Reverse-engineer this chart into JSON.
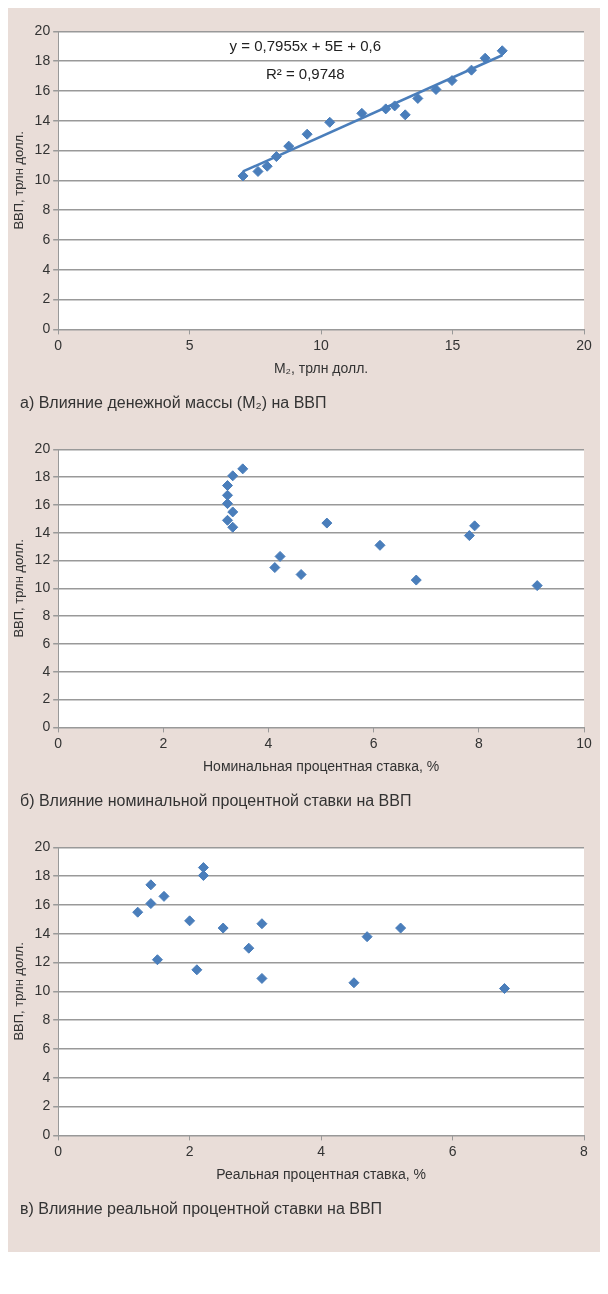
{
  "chart_data": [
    {
      "type": "scatter",
      "title": "а) Влияние денежной массы (M₂) на ВВП",
      "xlabel": "M₂, трлн долл.",
      "ylabel": "ВВП, трлн долл.",
      "xlim": [
        0,
        20
      ],
      "xticks": [
        0,
        5,
        10,
        15,
        20
      ],
      "ylim": [
        0,
        20
      ],
      "yticks": [
        0,
        2,
        4,
        6,
        8,
        10,
        12,
        14,
        16,
        18,
        20
      ],
      "grid": "y",
      "legend": false,
      "annotations": [
        "y = 0,7955x + 5E + 0,6",
        "R² = 0,9748"
      ],
      "series": [
        {
          "marker": "diamond",
          "color": "#4a7ebb",
          "x": [
            7.03,
            7.6,
            7.95,
            8.3,
            8.77,
            9.47,
            10.33,
            11.55,
            12.46,
            12.8,
            13.2,
            13.68,
            14.37,
            14.98,
            15.72,
            16.24,
            16.89
          ],
          "values": [
            10.3,
            10.6,
            10.95,
            11.6,
            12.3,
            13.1,
            13.9,
            14.5,
            14.8,
            15.0,
            14.4,
            15.5,
            16.1,
            16.7,
            17.4,
            18.2,
            18.7
          ]
        },
        {
          "type": "line",
          "marker": "none",
          "color": "#4a7ebb",
          "x": [
            7.03,
            16.89
          ],
          "values": [
            10.6,
            18.4
          ]
        }
      ]
    },
    {
      "type": "scatter",
      "title": "б) Влияние номинальной процентной ставки на ВВП",
      "xlabel": "Номинальная процентная ставка, %",
      "ylabel": "ВВП, трлн долл.",
      "xlim": [
        0,
        10
      ],
      "xticks": [
        0,
        2,
        4,
        6,
        8,
        10
      ],
      "ylim": [
        0,
        20
      ],
      "yticks": [
        0,
        2,
        4,
        6,
        8,
        10,
        12,
        14,
        16,
        18,
        20
      ],
      "grid": "y",
      "legend": false,
      "marker": "diamond",
      "series": [
        {
          "color": "#4a7ebb",
          "x": [
            3.51,
            3.32,
            3.22,
            3.22,
            3.22,
            3.32,
            3.22,
            3.32,
            5.11,
            4.22,
            4.12,
            4.62,
            6.12,
            6.81,
            7.82,
            7.92,
            9.11
          ],
          "values": [
            18.6,
            18.1,
            17.4,
            16.7,
            16.1,
            15.5,
            14.9,
            14.4,
            14.7,
            12.3,
            11.5,
            11.0,
            13.1,
            10.6,
            13.8,
            14.5,
            10.2
          ]
        }
      ]
    },
    {
      "type": "scatter",
      "title": "в) Влияние реальной процентной ставки на ВВП",
      "xlabel": "Реальная процентная ставка, %",
      "ylabel": "ВВП, трлн долл.",
      "xlim": [
        0,
        8
      ],
      "xticks": [
        0,
        2,
        4,
        6,
        8
      ],
      "ylim": [
        0,
        20
      ],
      "yticks": [
        0,
        2,
        4,
        6,
        8,
        10,
        12,
        14,
        16,
        18,
        20
      ],
      "grid": "y",
      "legend": false,
      "marker": "diamond",
      "series": [
        {
          "color": "#4a7ebb",
          "x": [
            2.21,
            2.21,
            1.41,
            1.61,
            1.41,
            1.21,
            2.0,
            2.51,
            3.1,
            2.9,
            1.51,
            2.11,
            3.1,
            4.5,
            4.7,
            5.21,
            6.79
          ],
          "values": [
            18.6,
            18.05,
            17.4,
            16.6,
            16.1,
            15.5,
            14.9,
            14.4,
            14.7,
            13.0,
            12.2,
            11.5,
            10.9,
            10.6,
            13.8,
            14.4,
            10.2
          ]
        }
      ]
    }
  ]
}
